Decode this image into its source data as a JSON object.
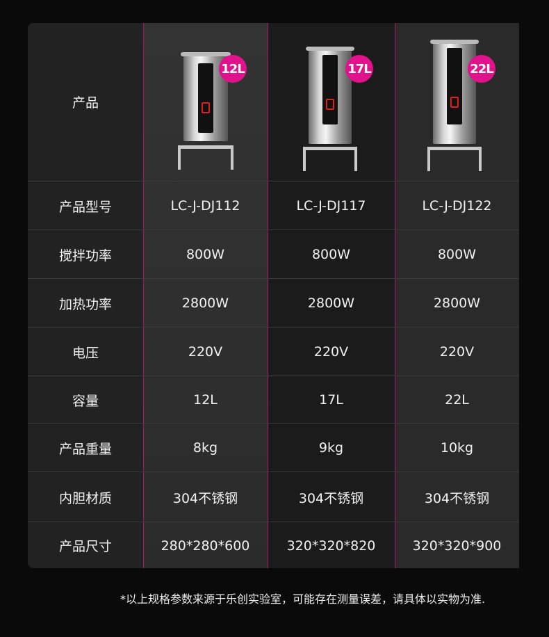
{
  "colors": {
    "accent": "#e0138c",
    "divider": "#b0166e",
    "background": "#0a0a0a"
  },
  "header": {
    "label": "产品",
    "products": [
      {
        "badge": "12L",
        "icon": "stainless-kettle-image"
      },
      {
        "badge": "17L",
        "icon": "stainless-kettle-image"
      },
      {
        "badge": "22L",
        "icon": "stainless-kettle-image"
      }
    ]
  },
  "rows": [
    {
      "label": "产品型号",
      "values": [
        "LC-J-DJ112",
        "LC-J-DJ117",
        "LC-J-DJ122"
      ]
    },
    {
      "label": "搅拌功率",
      "values": [
        "800W",
        "800W",
        "800W"
      ]
    },
    {
      "label": "加热功率",
      "values": [
        "2800W",
        "2800W",
        "2800W"
      ]
    },
    {
      "label": "电压",
      "values": [
        "220V",
        "220V",
        "220V"
      ]
    },
    {
      "label": "容量",
      "values": [
        "12L",
        "17L",
        "22L"
      ]
    },
    {
      "label": "产品重量",
      "values": [
        "8kg",
        "9kg",
        "10kg"
      ]
    },
    {
      "label": "内胆材质",
      "values": [
        "304不锈钢",
        "304不锈钢",
        "304不锈钢"
      ]
    },
    {
      "label": "产品尺寸",
      "values": [
        "280*280*600",
        "320*320*820",
        "320*320*900"
      ]
    }
  ],
  "footnote": "*以上规格参数来源于乐创实验室，可能存在测量误差，请具体以实物为准."
}
